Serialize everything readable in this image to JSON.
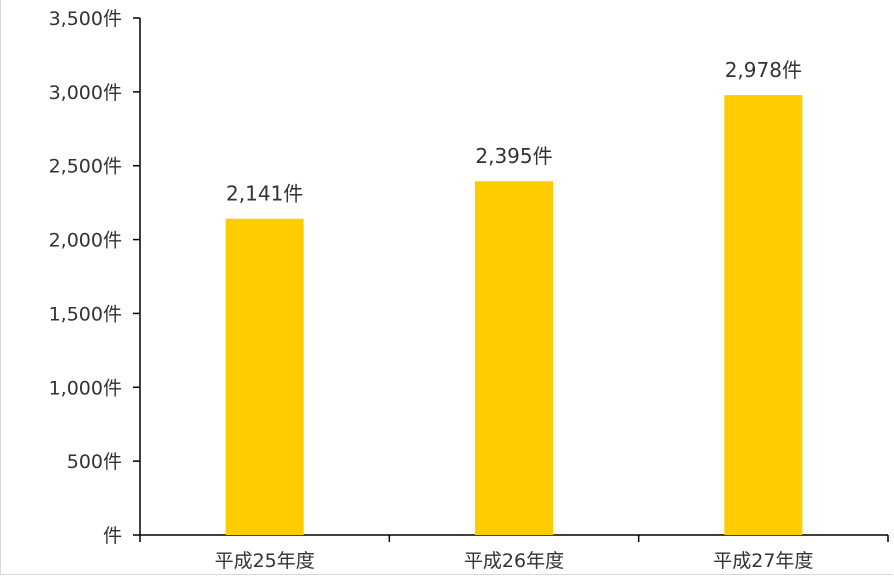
{
  "chart_data": {
    "type": "bar",
    "categories": [
      "平成25年度",
      "平成26年度",
      "平成27年度"
    ],
    "values": [
      2141,
      2395,
      2978
    ],
    "data_labels": [
      "2,141件",
      "2,395件",
      "2,978件"
    ],
    "y_ticks": [
      {
        "value": 0,
        "label": "件"
      },
      {
        "value": 500,
        "label": "500件"
      },
      {
        "value": 1000,
        "label": "1,000件"
      },
      {
        "value": 1500,
        "label": "1,500件"
      },
      {
        "value": 2000,
        "label": "2,000件"
      },
      {
        "value": 2500,
        "label": "2,500件"
      },
      {
        "value": 3000,
        "label": "3,000件"
      },
      {
        "value": 3500,
        "label": "3,500件"
      }
    ],
    "ylim": [
      0,
      3500
    ],
    "grid": false,
    "legend": "none",
    "bar_color": "#FFCC00",
    "axis_color": "#000000"
  }
}
